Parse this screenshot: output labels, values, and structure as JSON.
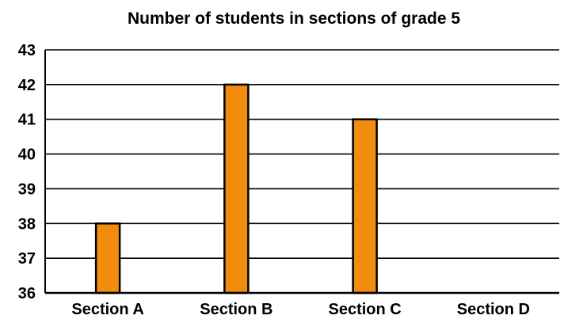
{
  "chart_data": {
    "type": "bar",
    "title": "Number of students in sections of grade 5",
    "xlabel": "",
    "ylabel": "",
    "categories": [
      "Section A",
      "Section B",
      "Section C",
      "Section D"
    ],
    "values": [
      38,
      42,
      41,
      null
    ],
    "ylim": [
      36,
      43
    ],
    "yticks": [
      "36",
      "37",
      "38",
      "39",
      "40",
      "41",
      "42",
      "43"
    ],
    "grid": "horizontal",
    "bar_color": "#f28c0f",
    "bar_edge_color": "#000000"
  }
}
